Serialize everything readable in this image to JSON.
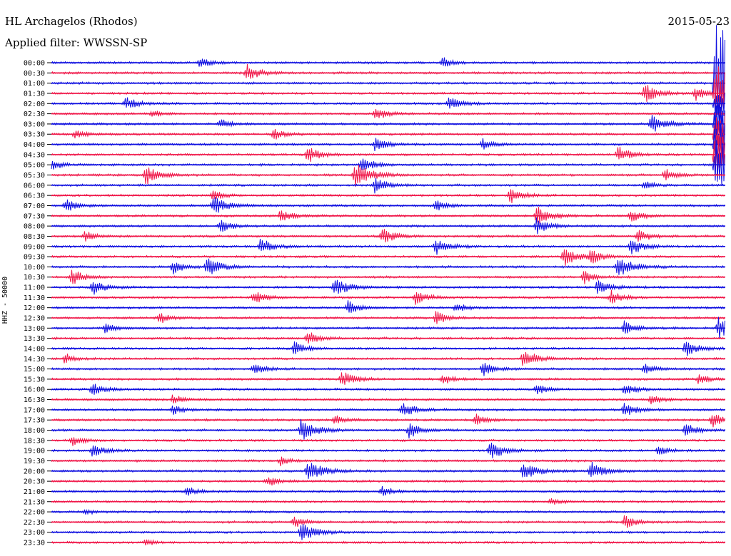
{
  "header": {
    "station": "HL Archagelos (Rhodos)",
    "filter": "Applied filter: WWSSN-SP",
    "date": "2015-05-23"
  },
  "ylabel": "HHZ - 50000",
  "colors": {
    "blue": "#1010e0",
    "red": "#f0184a",
    "background": "#ffffff",
    "text": "#000000"
  },
  "chart_data": {
    "type": "line",
    "title": "HL Archagelos (Rhodos)",
    "subtitle": "Applied filter: WWSSN-SP",
    "date": "2015-05-23",
    "ylabel": "HHZ - 50000",
    "xlabel": "",
    "row_tick_labels": [
      "00:00",
      "00:30",
      "01:00",
      "01:30",
      "02:00",
      "02:30",
      "03:00",
      "03:30",
      "04:00",
      "04:30",
      "05:00",
      "05:30",
      "06:00",
      "06:30",
      "07:00",
      "07:30",
      "08:00",
      "08:30",
      "09:00",
      "09:30",
      "10:00",
      "10:30",
      "11:00",
      "11:30",
      "12:00",
      "12:30",
      "13:00",
      "13:30",
      "14:00",
      "14:30",
      "15:00",
      "15:30",
      "16:00",
      "16:30",
      "17:00",
      "17:30",
      "18:00",
      "18:30",
      "19:00",
      "19:30",
      "20:00",
      "20:30",
      "21:00",
      "21:30",
      "22:00",
      "22:30",
      "23:00",
      "23:30"
    ],
    "trace_colors": [
      "blue",
      "red"
    ],
    "traces_per_row": 1,
    "events": [
      {
        "row": 0,
        "x": 0.22,
        "amp": 8
      },
      {
        "row": 0,
        "x": 0.58,
        "amp": 8
      },
      {
        "row": 1,
        "x": 0.29,
        "amp": 12
      },
      {
        "row": 2,
        "x": 0.985,
        "amp": 90
      },
      {
        "row": 3,
        "x": 0.88,
        "amp": 14
      },
      {
        "row": 3,
        "x": 0.955,
        "amp": 10
      },
      {
        "row": 3,
        "x": 0.985,
        "amp": 40
      },
      {
        "row": 4,
        "x": 0.11,
        "amp": 10
      },
      {
        "row": 4,
        "x": 0.59,
        "amp": 10
      },
      {
        "row": 4,
        "x": 0.985,
        "amp": 25
      },
      {
        "row": 5,
        "x": 0.48,
        "amp": 10
      },
      {
        "row": 5,
        "x": 0.15,
        "amp": 6
      },
      {
        "row": 6,
        "x": 0.25,
        "amp": 7
      },
      {
        "row": 6,
        "x": 0.89,
        "amp": 14
      },
      {
        "row": 6,
        "x": 0.985,
        "amp": 35
      },
      {
        "row": 7,
        "x": 0.035,
        "amp": 7
      },
      {
        "row": 7,
        "x": 0.33,
        "amp": 8
      },
      {
        "row": 7,
        "x": 0.985,
        "amp": 40
      },
      {
        "row": 8,
        "x": 0.48,
        "amp": 10
      },
      {
        "row": 8,
        "x": 0.64,
        "amp": 8
      },
      {
        "row": 8,
        "x": 0.985,
        "amp": 40
      },
      {
        "row": 9,
        "x": 0.38,
        "amp": 12
      },
      {
        "row": 9,
        "x": 0.84,
        "amp": 12
      },
      {
        "row": 9,
        "x": 0.985,
        "amp": 40
      },
      {
        "row": 10,
        "x": 0.0,
        "amp": 8
      },
      {
        "row": 10,
        "x": 0.46,
        "amp": 12
      },
      {
        "row": 10,
        "x": 0.985,
        "amp": 40
      },
      {
        "row": 11,
        "x": 0.14,
        "amp": 14
      },
      {
        "row": 11,
        "x": 0.45,
        "amp": 18
      },
      {
        "row": 11,
        "x": 0.91,
        "amp": 9
      },
      {
        "row": 12,
        "x": 0.48,
        "amp": 12
      },
      {
        "row": 12,
        "x": 0.88,
        "amp": 7
      },
      {
        "row": 13,
        "x": 0.24,
        "amp": 8
      },
      {
        "row": 13,
        "x": 0.68,
        "amp": 12
      },
      {
        "row": 14,
        "x": 0.02,
        "amp": 10
      },
      {
        "row": 14,
        "x": 0.24,
        "amp": 14
      },
      {
        "row": 14,
        "x": 0.57,
        "amp": 8
      },
      {
        "row": 15,
        "x": 0.34,
        "amp": 10
      },
      {
        "row": 15,
        "x": 0.72,
        "amp": 14
      },
      {
        "row": 15,
        "x": 0.86,
        "amp": 10
      },
      {
        "row": 16,
        "x": 0.25,
        "amp": 10
      },
      {
        "row": 16,
        "x": 0.72,
        "amp": 12
      },
      {
        "row": 17,
        "x": 0.05,
        "amp": 8
      },
      {
        "row": 17,
        "x": 0.49,
        "amp": 12
      },
      {
        "row": 17,
        "x": 0.87,
        "amp": 10
      },
      {
        "row": 18,
        "x": 0.31,
        "amp": 12
      },
      {
        "row": 18,
        "x": 0.57,
        "amp": 12
      },
      {
        "row": 18,
        "x": 0.86,
        "amp": 12
      },
      {
        "row": 19,
        "x": 0.76,
        "amp": 14
      },
      {
        "row": 19,
        "x": 0.8,
        "amp": 10
      },
      {
        "row": 20,
        "x": 0.18,
        "amp": 10
      },
      {
        "row": 20,
        "x": 0.23,
        "amp": 14
      },
      {
        "row": 20,
        "x": 0.84,
        "amp": 16
      },
      {
        "row": 21,
        "x": 0.03,
        "amp": 12
      },
      {
        "row": 21,
        "x": 0.79,
        "amp": 10
      },
      {
        "row": 22,
        "x": 0.06,
        "amp": 12
      },
      {
        "row": 22,
        "x": 0.42,
        "amp": 14
      },
      {
        "row": 22,
        "x": 0.81,
        "amp": 12
      },
      {
        "row": 23,
        "x": 0.3,
        "amp": 10
      },
      {
        "row": 23,
        "x": 0.54,
        "amp": 10
      },
      {
        "row": 23,
        "x": 0.83,
        "amp": 10
      },
      {
        "row": 24,
        "x": 0.44,
        "amp": 10
      },
      {
        "row": 24,
        "x": 0.6,
        "amp": 8
      },
      {
        "row": 25,
        "x": 0.16,
        "amp": 8
      },
      {
        "row": 25,
        "x": 0.57,
        "amp": 10
      },
      {
        "row": 26,
        "x": 0.08,
        "amp": 8
      },
      {
        "row": 26,
        "x": 0.85,
        "amp": 10
      },
      {
        "row": 26,
        "x": 0.99,
        "amp": 16
      },
      {
        "row": 27,
        "x": 0.38,
        "amp": 10
      },
      {
        "row": 28,
        "x": 0.36,
        "amp": 10
      },
      {
        "row": 28,
        "x": 0.94,
        "amp": 12
      },
      {
        "row": 29,
        "x": 0.02,
        "amp": 8
      },
      {
        "row": 29,
        "x": 0.7,
        "amp": 14
      },
      {
        "row": 30,
        "x": 0.3,
        "amp": 10
      },
      {
        "row": 30,
        "x": 0.64,
        "amp": 10
      },
      {
        "row": 30,
        "x": 0.88,
        "amp": 8
      },
      {
        "row": 31,
        "x": 0.43,
        "amp": 12
      },
      {
        "row": 31,
        "x": 0.58,
        "amp": 8
      },
      {
        "row": 31,
        "x": 0.96,
        "amp": 8
      },
      {
        "row": 32,
        "x": 0.06,
        "amp": 10
      },
      {
        "row": 32,
        "x": 0.72,
        "amp": 8
      },
      {
        "row": 32,
        "x": 0.85,
        "amp": 10
      },
      {
        "row": 33,
        "x": 0.18,
        "amp": 8
      },
      {
        "row": 33,
        "x": 0.89,
        "amp": 8
      },
      {
        "row": 34,
        "x": 0.18,
        "amp": 8
      },
      {
        "row": 34,
        "x": 0.52,
        "amp": 12
      },
      {
        "row": 34,
        "x": 0.85,
        "amp": 10
      },
      {
        "row": 35,
        "x": 0.42,
        "amp": 8
      },
      {
        "row": 35,
        "x": 0.63,
        "amp": 8
      },
      {
        "row": 35,
        "x": 0.98,
        "amp": 10
      },
      {
        "row": 36,
        "x": 0.37,
        "amp": 16
      },
      {
        "row": 36,
        "x": 0.53,
        "amp": 12
      },
      {
        "row": 36,
        "x": 0.94,
        "amp": 10
      },
      {
        "row": 37,
        "x": 0.03,
        "amp": 8
      },
      {
        "row": 38,
        "x": 0.06,
        "amp": 10
      },
      {
        "row": 38,
        "x": 0.65,
        "amp": 14
      },
      {
        "row": 38,
        "x": 0.9,
        "amp": 8
      },
      {
        "row": 39,
        "x": 0.34,
        "amp": 6
      },
      {
        "row": 40,
        "x": 0.38,
        "amp": 16
      },
      {
        "row": 40,
        "x": 0.7,
        "amp": 14
      },
      {
        "row": 40,
        "x": 0.8,
        "amp": 14
      },
      {
        "row": 41,
        "x": 0.32,
        "amp": 8
      },
      {
        "row": 42,
        "x": 0.2,
        "amp": 8
      },
      {
        "row": 42,
        "x": 0.49,
        "amp": 8
      },
      {
        "row": 43,
        "x": 0.74,
        "amp": 6
      },
      {
        "row": 44,
        "x": 0.05,
        "amp": 4
      },
      {
        "row": 45,
        "x": 0.36,
        "amp": 8
      },
      {
        "row": 45,
        "x": 0.85,
        "amp": 10
      },
      {
        "row": 46,
        "x": 0.37,
        "amp": 14
      },
      {
        "row": 47,
        "x": 0.14,
        "amp": 5
      }
    ]
  }
}
